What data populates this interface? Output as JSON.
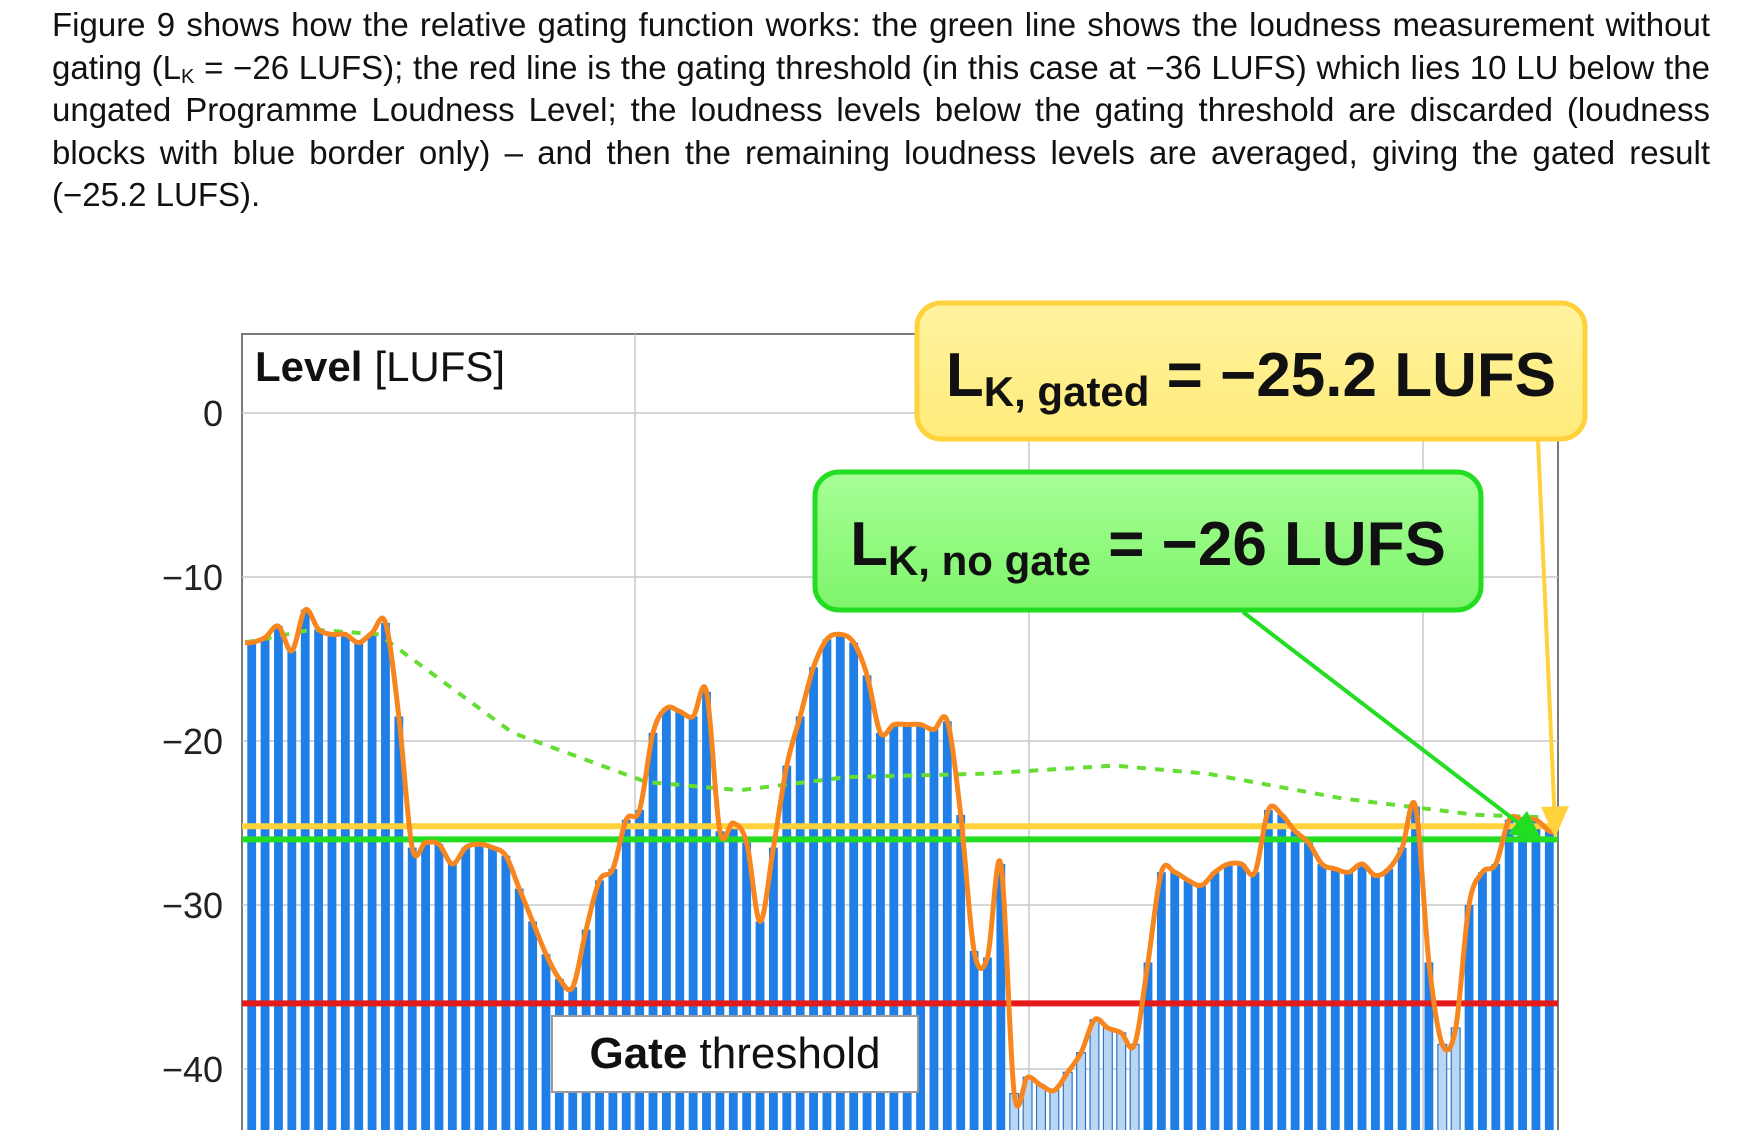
{
  "caption": {
    "part1": "Figure 9 shows how the relative gating function works: the green line shows the loudness measurement without gating (L",
    "sub": "K",
    "part2": " = −26 LUFS); the red line is the gating threshold (in this case at −36 LUFS) which lies 10 LU below the ungated Programme Loudness Level; the loudness levels below the gating threshold are discarded (loudness blocks with blue border only) – and then the remaining loudness levels are averaged, giving the gated result (−25.2 LUFS)."
  },
  "chart_data": {
    "type": "bar",
    "ylabel_bold": "Level",
    "ylabel_unit": "[LUFS]",
    "ylim": [
      -42.5,
      5
    ],
    "yticks": [
      0,
      -10,
      -20,
      -30,
      -40
    ],
    "ytick_labels": [
      "0",
      "−10",
      "−20",
      "−30",
      "−40"
    ],
    "grid": true,
    "colors": {
      "bar_fill": "#1f7fe6",
      "bar_fill_gated": "#b9d7f5",
      "bar_border": "#2f74c8",
      "orange_line": "#f7861f",
      "running_avg": "#66dd33",
      "ungated_line": "#22dd22",
      "gated_line": "#ffd23c",
      "threshold_line": "#e51b1b"
    },
    "block_levels": [
      -14,
      -13.7,
      -13,
      -14.5,
      -12,
      -13.2,
      -13.5,
      -13.5,
      -14,
      -13.4,
      -12.8,
      -18.5,
      -26.5,
      -26.2,
      -26.3,
      -27.5,
      -26.5,
      -26.3,
      -26.5,
      -27,
      -29,
      -31,
      -33,
      -34.5,
      -35,
      -31.5,
      -28.5,
      -27.8,
      -24.8,
      -24.2,
      -19.5,
      -18,
      -18.2,
      -18.5,
      -17,
      -25.5,
      -25,
      -26.2,
      -31,
      -26.5,
      -21.5,
      -18.5,
      -15.5,
      -13.8,
      -13.5,
      -14,
      -16,
      -19.5,
      -19,
      -19,
      -19,
      -19.3,
      -18.8,
      -24.5,
      -32.8,
      -33.2,
      -27.5,
      -41.5,
      -40.5,
      -41,
      -41.3,
      -40.2,
      -39,
      -37,
      -37.5,
      -37.8,
      -38.5,
      -33.5,
      -28,
      -28,
      -28.5,
      -28.8,
      -28,
      -27.5,
      -27.5,
      -28,
      -24.2,
      -24.5,
      -25.5,
      -26.2,
      -27.5,
      -27.8,
      -28,
      -27.5,
      -28.2,
      -27.8,
      -26.5,
      -24,
      -33.5,
      -38.5,
      -37.5,
      -30,
      -28,
      -27.5,
      -24.8,
      -24.8,
      -24.8,
      -25.5
    ],
    "running_average": [
      [
        0,
        -14
      ],
      [
        5,
        -13.2
      ],
      [
        10,
        -13.5
      ],
      [
        20,
        -19.5
      ],
      [
        30,
        -22.5
      ],
      [
        37,
        -23
      ],
      [
        45,
        -22.2
      ],
      [
        55,
        -22
      ],
      [
        65,
        -21.5
      ],
      [
        72,
        -22
      ],
      [
        82,
        -23.5
      ],
      [
        92,
        -24.5
      ],
      [
        102,
        -24.8
      ],
      [
        112,
        -25
      ],
      [
        122,
        -25.3
      ],
      [
        135,
        -25.8
      ],
      [
        148,
        -26
      ]
    ],
    "lines": {
      "ungated": -26,
      "gated": -25.2,
      "threshold": -36
    },
    "annotations": {
      "gated_main": "L",
      "gated_sub": "K, gated",
      "gated_value": " = −25.2 LUFS",
      "ungated_main": "L",
      "ungated_sub": "K, no gate",
      "ungated_value": " = −26 LUFS",
      "threshold_bold": "Gate",
      "threshold_rest": " threshold"
    }
  }
}
